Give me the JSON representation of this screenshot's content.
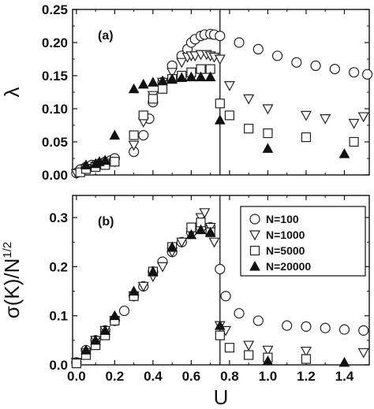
{
  "chart_data": [
    {
      "type": "scatter",
      "panel_label": "(a)",
      "xlabel": "",
      "ylabel": "λ",
      "xlim": [
        -0.02,
        1.53
      ],
      "ylim": [
        0,
        0.25
      ],
      "xticks": [
        0.0,
        0.2,
        0.4,
        0.6,
        0.8,
        1.0,
        1.2,
        1.4
      ],
      "xtick_labels": [
        "",
        "",
        "",
        "",
        "",
        "",
        "",
        ""
      ],
      "yticks": [
        0.0,
        0.05,
        0.1,
        0.15,
        0.2,
        0.25
      ],
      "ytick_labels": [
        "0.00",
        "0.05",
        "0.10",
        "0.15",
        "0.20",
        "0.25"
      ],
      "vline_x": 0.75,
      "series": [
        {
          "name": "N=100",
          "marker": "circle",
          "points": [
            [
              0.0,
              0.003
            ],
            [
              0.02,
              0.008
            ],
            [
              0.05,
              0.012
            ],
            [
              0.08,
              0.015
            ],
            [
              0.1,
              0.015
            ],
            [
              0.12,
              0.017
            ],
            [
              0.15,
              0.02
            ],
            [
              0.18,
              0.022
            ],
            [
              0.2,
              0.025
            ],
            [
              0.3,
              0.035
            ],
            [
              0.35,
              0.06
            ],
            [
              0.38,
              0.085
            ],
            [
              0.4,
              0.11
            ],
            [
              0.45,
              0.14
            ],
            [
              0.5,
              0.165
            ],
            [
              0.55,
              0.18
            ],
            [
              0.58,
              0.19
            ],
            [
              0.6,
              0.2
            ],
            [
              0.62,
              0.205
            ],
            [
              0.65,
              0.21
            ],
            [
              0.67,
              0.212
            ],
            [
              0.7,
              0.213
            ],
            [
              0.72,
              0.212
            ],
            [
              0.75,
              0.21
            ],
            [
              0.85,
              0.2
            ],
            [
              0.95,
              0.19
            ],
            [
              1.05,
              0.18
            ],
            [
              1.15,
              0.17
            ],
            [
              1.25,
              0.165
            ],
            [
              1.35,
              0.16
            ],
            [
              1.45,
              0.155
            ],
            [
              1.52,
              0.152
            ]
          ]
        },
        {
          "name": "N=1000",
          "marker": "triangle-down",
          "points": [
            [
              0.0,
              0.002
            ],
            [
              0.05,
              0.01
            ],
            [
              0.1,
              0.013
            ],
            [
              0.15,
              0.018
            ],
            [
              0.2,
              0.02
            ],
            [
              0.3,
              0.045
            ],
            [
              0.35,
              0.08
            ],
            [
              0.4,
              0.12
            ],
            [
              0.45,
              0.14
            ],
            [
              0.5,
              0.155
            ],
            [
              0.55,
              0.17
            ],
            [
              0.58,
              0.178
            ],
            [
              0.6,
              0.18
            ],
            [
              0.62,
              0.18
            ],
            [
              0.65,
              0.182
            ],
            [
              0.68,
              0.182
            ],
            [
              0.7,
              0.18
            ],
            [
              0.72,
              0.178
            ],
            [
              0.75,
              0.175
            ],
            [
              0.8,
              0.135
            ],
            [
              0.9,
              0.115
            ],
            [
              1.0,
              0.1
            ],
            [
              1.2,
              0.09
            ],
            [
              1.3,
              0.085
            ],
            [
              1.45,
              0.078
            ],
            [
              1.5,
              0.088
            ]
          ]
        },
        {
          "name": "N=5000",
          "marker": "square",
          "points": [
            [
              0.02,
              0.004
            ],
            [
              0.05,
              0.009
            ],
            [
              0.1,
              0.012
            ],
            [
              0.15,
              0.015
            ],
            [
              0.2,
              0.02
            ],
            [
              0.3,
              0.06
            ],
            [
              0.35,
              0.09
            ],
            [
              0.4,
              0.115
            ],
            [
              0.45,
              0.13
            ],
            [
              0.5,
              0.145
            ],
            [
              0.55,
              0.15
            ],
            [
              0.6,
              0.155
            ],
            [
              0.65,
              0.16
            ],
            [
              0.7,
              0.16
            ],
            [
              0.75,
              0.108
            ],
            [
              0.8,
              0.09
            ],
            [
              0.9,
              0.07
            ],
            [
              1.0,
              0.063
            ],
            [
              1.2,
              0.057
            ],
            [
              1.45,
              0.05
            ]
          ]
        },
        {
          "name": "N=20000",
          "marker": "triangle-up-filled",
          "points": [
            [
              0.05,
              0.015
            ],
            [
              0.1,
              0.017
            ],
            [
              0.12,
              0.02
            ],
            [
              0.15,
              0.022
            ],
            [
              0.2,
              0.06
            ],
            [
              0.3,
              0.13
            ],
            [
              0.35,
              0.137
            ],
            [
              0.4,
              0.14
            ],
            [
              0.45,
              0.142
            ],
            [
              0.5,
              0.145
            ],
            [
              0.55,
              0.147
            ],
            [
              0.6,
              0.148
            ],
            [
              0.65,
              0.148
            ],
            [
              0.7,
              0.148
            ],
            [
              0.75,
              0.083
            ],
            [
              1.0,
              0.04
            ],
            [
              1.4,
              0.032
            ]
          ]
        }
      ]
    },
    {
      "type": "scatter",
      "panel_label": "(b)",
      "xlabel": "U",
      "ylabel": "σ(K)/N",
      "ylabel_superscript": "1/2",
      "xlim": [
        -0.02,
        1.53
      ],
      "ylim": [
        0,
        0.345
      ],
      "xticks": [
        0.0,
        0.2,
        0.4,
        0.6,
        0.8,
        1.0,
        1.2,
        1.4
      ],
      "xtick_labels": [
        "0.0",
        "0.2",
        "0.4",
        "0.6",
        "0.8",
        "1.0",
        "1.2",
        "1.4"
      ],
      "yticks": [
        0.0,
        0.1,
        0.2,
        0.3
      ],
      "ytick_labels": [
        "0.0",
        "0.1",
        "0.2",
        "0.3"
      ],
      "vline_x": 0.75,
      "legend": {
        "position": "top-right",
        "entries": [
          "N=100",
          "N=1000",
          "N=5000",
          "N=20000"
        ]
      },
      "series": [
        {
          "name": "N=100",
          "marker": "circle",
          "points": [
            [
              0.0,
              0.005
            ],
            [
              0.05,
              0.03
            ],
            [
              0.1,
              0.05
            ],
            [
              0.15,
              0.07
            ],
            [
              0.2,
              0.09
            ],
            [
              0.25,
              0.11
            ],
            [
              0.3,
              0.14
            ],
            [
              0.35,
              0.16
            ],
            [
              0.4,
              0.19
            ],
            [
              0.45,
              0.21
            ],
            [
              0.5,
              0.23
            ],
            [
              0.55,
              0.25
            ],
            [
              0.6,
              0.27
            ],
            [
              0.65,
              0.28
            ],
            [
              0.7,
              0.28
            ],
            [
              0.75,
              0.195
            ],
            [
              0.78,
              0.14
            ],
            [
              0.85,
              0.105
            ],
            [
              0.95,
              0.09
            ],
            [
              1.1,
              0.08
            ],
            [
              1.2,
              0.078
            ],
            [
              1.3,
              0.075
            ],
            [
              1.4,
              0.072
            ],
            [
              1.5,
              0.07
            ]
          ]
        },
        {
          "name": "N=1000",
          "marker": "triangle-down",
          "points": [
            [
              0.0,
              0.005
            ],
            [
              0.05,
              0.025
            ],
            [
              0.1,
              0.05
            ],
            [
              0.15,
              0.07
            ],
            [
              0.2,
              0.09
            ],
            [
              0.3,
              0.14
            ],
            [
              0.35,
              0.16
            ],
            [
              0.4,
              0.18
            ],
            [
              0.45,
              0.2
            ],
            [
              0.5,
              0.23
            ],
            [
              0.55,
              0.25
            ],
            [
              0.6,
              0.27
            ],
            [
              0.65,
              0.3
            ],
            [
              0.67,
              0.31
            ],
            [
              0.7,
              0.28
            ],
            [
              0.72,
              0.25
            ],
            [
              0.75,
              0.08
            ],
            [
              0.78,
              0.07
            ],
            [
              0.9,
              0.04
            ],
            [
              1.0,
              0.03
            ],
            [
              1.2,
              0.028
            ],
            [
              1.5,
              0.025
            ]
          ]
        },
        {
          "name": "N=5000",
          "marker": "square",
          "points": [
            [
              0.0,
              0.003
            ],
            [
              0.05,
              0.02
            ],
            [
              0.1,
              0.04
            ],
            [
              0.15,
              0.06
            ],
            [
              0.2,
              0.09
            ],
            [
              0.3,
              0.14
            ],
            [
              0.4,
              0.19
            ],
            [
              0.5,
              0.24
            ],
            [
              0.6,
              0.28
            ],
            [
              0.65,
              0.29
            ],
            [
              0.7,
              0.27
            ],
            [
              0.75,
              0.06
            ],
            [
              0.8,
              0.035
            ],
            [
              0.9,
              0.02
            ],
            [
              1.0,
              0.015
            ],
            [
              1.2,
              0.012
            ]
          ]
        },
        {
          "name": "N=20000",
          "marker": "triangle-up-filled",
          "points": [
            [
              0.05,
              0.03
            ],
            [
              0.1,
              0.05
            ],
            [
              0.15,
              0.07
            ],
            [
              0.2,
              0.1
            ],
            [
              0.3,
              0.15
            ],
            [
              0.4,
              0.19
            ],
            [
              0.5,
              0.24
            ],
            [
              0.6,
              0.265
            ],
            [
              0.65,
              0.275
            ],
            [
              0.7,
              0.27
            ],
            [
              0.75,
              0.08
            ],
            [
              1.0,
              0.008
            ],
            [
              1.4,
              0.005
            ]
          ]
        }
      ]
    }
  ]
}
